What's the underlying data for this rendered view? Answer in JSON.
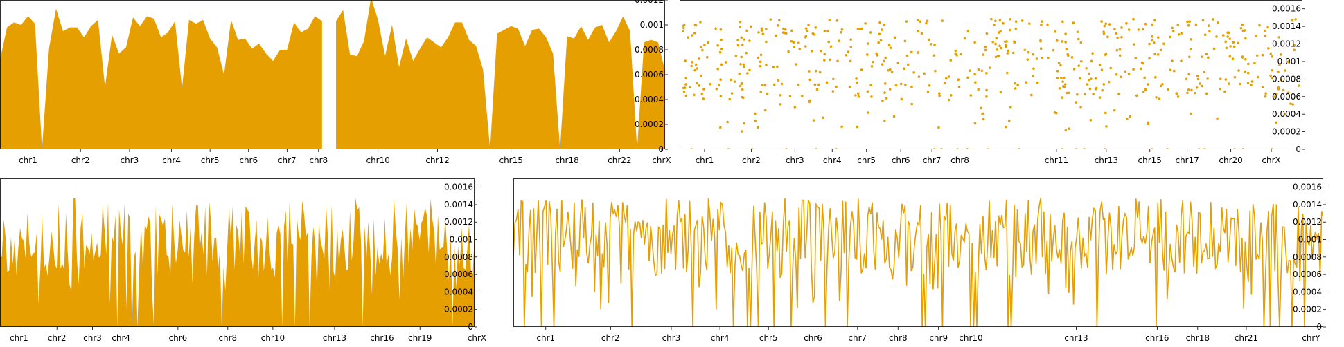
{
  "chart_data": [
    {
      "id": "panel-top-left",
      "type": "area",
      "color": "#E69F00",
      "ylim": [
        0,
        0.0012
      ],
      "yticks": [
        "0",
        "0.0002",
        "0.0004",
        "0.0006",
        "0.0008",
        "0.001",
        "0.0012"
      ],
      "y_axis_side": "right",
      "xlim": [
        0,
        95
      ],
      "x_tick_labels": [
        {
          "label": "chr1",
          "x": 4
        },
        {
          "label": "chr2",
          "x": 11.5
        },
        {
          "label": "chr3",
          "x": 18.5
        },
        {
          "label": "chr4",
          "x": 24.5
        },
        {
          "label": "chr5",
          "x": 30
        },
        {
          "label": "chr6",
          "x": 35.5
        },
        {
          "label": "chr7",
          "x": 41
        },
        {
          "label": "chr8",
          "x": 45.5
        },
        {
          "label": "chr10",
          "x": 54
        },
        {
          "label": "chr12",
          "x": 62.5
        },
        {
          "label": "chr15",
          "x": 73
        },
        {
          "label": "chr18",
          "x": 81
        },
        {
          "label": "chr22",
          "x": 88.5
        },
        {
          "label": "chrX",
          "x": 94.5
        }
      ],
      "values": [
        0.00072,
        0.00098,
        0.00102,
        0.001,
        0.00107,
        0.00101,
        0.0,
        0.00081,
        0.00113,
        0.00095,
        0.00098,
        0.00098,
        0.0009,
        0.00099,
        0.00104,
        0.0005,
        0.00092,
        0.00077,
        0.00082,
        0.00106,
        0.00099,
        0.00107,
        0.00105,
        0.0009,
        0.00094,
        0.00103,
        0.00049,
        0.00104,
        0.00101,
        0.00104,
        0.00089,
        0.00082,
        0.0006,
        0.00104,
        0.00088,
        0.00089,
        0.00081,
        0.00085,
        0.00077,
        0.00071,
        0.0008,
        0.0008,
        0.00102,
        0.00094,
        0.00097,
        0.00107,
        0.00103,
        null,
        0.00103,
        0.00112,
        0.00076,
        0.00075,
        0.00087,
        0.00122,
        0.00104,
        0.00075,
        0.001,
        0.00066,
        0.00089,
        0.00071,
        0.00081,
        0.0009,
        0.00086,
        0.00082,
        0.0009,
        0.00102,
        0.00102,
        0.00088,
        0.00083,
        0.00064,
        0.0,
        0.00093,
        0.00096,
        0.00099,
        0.00097,
        0.00083,
        0.00096,
        0.00097,
        0.0009,
        0.00077,
        0.0,
        0.00091,
        0.00089,
        0.00099,
        0.00088,
        0.00098,
        0.001,
        0.00086,
        0.00095,
        0.00107,
        0.00095,
        0.0,
        0.00086,
        0.00088,
        0.00086,
        0.00063
      ],
      "gaps_after_index": [
        47
      ]
    },
    {
      "id": "panel-top-right",
      "type": "scatter",
      "color": "#E69F00",
      "ylim": [
        0,
        0.0017
      ],
      "yticks": [
        "0",
        "0.0002",
        "0.0004",
        "0.0006",
        "0.0008",
        "0.001",
        "0.0012",
        "0.0014",
        "0.0016"
      ],
      "y_axis_side": "right",
      "xlim": [
        0,
        100
      ],
      "x_tick_labels": [
        {
          "label": "chr1",
          "x": 4
        },
        {
          "label": "chr2",
          "x": 11.5
        },
        {
          "label": "chr3",
          "x": 18.5
        },
        {
          "label": "chr4",
          "x": 24.5
        },
        {
          "label": "chr5",
          "x": 30
        },
        {
          "label": "chr6",
          "x": 35.5
        },
        {
          "label": "chr7",
          "x": 40.5
        },
        {
          "label": "chr8",
          "x": 45
        },
        {
          "label": "chr11",
          "x": 60.5
        },
        {
          "label": "chr13",
          "x": 68.5
        },
        {
          "label": "chr15",
          "x": 75.5
        },
        {
          "label": "chr17",
          "x": 81.5
        },
        {
          "label": "chr20",
          "x": 88.5
        },
        {
          "label": "chrX",
          "x": 95
        }
      ],
      "points_note": "dense scatter of per-window values; generated deterministically",
      "n_points": 620,
      "seed": 17
    },
    {
      "id": "panel-bottom-left",
      "type": "area",
      "color": "#E69F00",
      "ylim": [
        0,
        0.0017
      ],
      "yticks": [
        "0",
        "0.0002",
        "0.0004",
        "0.0006",
        "0.0008",
        "0.001",
        "0.0012",
        "0.0014",
        "0.0016"
      ],
      "y_axis_side": "right",
      "xlim": [
        0,
        100
      ],
      "x_tick_labels": [
        {
          "label": "chr1",
          "x": 4
        },
        {
          "label": "chr2",
          "x": 12
        },
        {
          "label": "chr3",
          "x": 19.5
        },
        {
          "label": "chr4",
          "x": 25.5
        },
        {
          "label": "chr6",
          "x": 37.5
        },
        {
          "label": "chr8",
          "x": 48
        },
        {
          "label": "chr10",
          "x": 57.5
        },
        {
          "label": "chr13",
          "x": 70.5
        },
        {
          "label": "chr16",
          "x": 80.5
        },
        {
          "label": "chr19",
          "x": 88.5
        },
        {
          "label": "chrX",
          "x": 100.5
        }
      ],
      "n_points": 260,
      "seed": 5
    },
    {
      "id": "panel-bottom-right",
      "type": "line",
      "color": "#E69F00",
      "ylim": [
        0,
        0.0017
      ],
      "yticks": [
        "0",
        "0.0002",
        "0.0004",
        "0.0006",
        "0.0008",
        "0.001",
        "0.0012",
        "0.0014",
        "0.0016"
      ],
      "y_axis_side": "right",
      "xlim": [
        0,
        100
      ],
      "x_tick_labels": [
        {
          "label": "chr1",
          "x": 4
        },
        {
          "label": "chr2",
          "x": 12
        },
        {
          "label": "chr3",
          "x": 19.5
        },
        {
          "label": "chr4",
          "x": 25.5
        },
        {
          "label": "chr5",
          "x": 31.5
        },
        {
          "label": "chr6",
          "x": 37
        },
        {
          "label": "chr7",
          "x": 42.5
        },
        {
          "label": "chr8",
          "x": 47.5
        },
        {
          "label": "chr9",
          "x": 52.5
        },
        {
          "label": "chr10",
          "x": 56.5
        },
        {
          "label": "chr13",
          "x": 69.5
        },
        {
          "label": "chr16",
          "x": 79.5
        },
        {
          "label": "chr18",
          "x": 84.5
        },
        {
          "label": "chr21",
          "x": 90.5
        },
        {
          "label": "chrY",
          "x": 98.5
        }
      ],
      "n_points": 520,
      "seed": 29
    }
  ]
}
